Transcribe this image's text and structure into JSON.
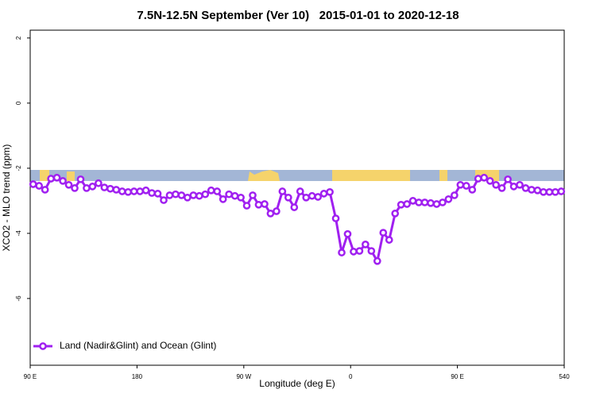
{
  "chart_data": {
    "type": "line",
    "title": "7.5N-12.5N September (Ver 10)   2015-01-01 to 2020-12-18",
    "xlabel": "Longitude (deg E)",
    "ylabel": "XCO2 - MLO trend (ppm)",
    "xlim": [
      90,
      540
    ],
    "xticks": [
      {
        "value": 90,
        "label": "90 E"
      },
      180,
      {
        "value": 270,
        "label": "90 W"
      },
      {
        "value": 360,
        "label": "0"
      },
      {
        "value": 450,
        "label": "90 E"
      },
      540
    ],
    "ylim": [
      -8.05,
      2.24
    ],
    "yticks": [
      -6,
      -4,
      -2,
      0,
      2
    ],
    "legend": "bottom-left",
    "x": [
      92.5,
      97.5,
      102.5,
      107.5,
      112.5,
      117.5,
      122.5,
      127.5,
      132.5,
      137.5,
      142.5,
      147.5,
      152.5,
      157.5,
      162.5,
      167.5,
      172.5,
      177.5,
      182.5,
      187.5,
      192.5,
      197.5,
      202.5,
      207.5,
      212.5,
      217.5,
      222.5,
      227.5,
      232.5,
      237.5,
      242.5,
      247.5,
      252.5,
      257.5,
      262.5,
      267.5,
      272.5,
      277.5,
      282.5,
      287.5,
      292.5,
      297.5,
      302.5,
      307.5,
      312.5,
      317.5,
      322.5,
      327.5,
      332.5,
      337.5,
      342.5,
      347.5,
      352.5,
      357.5,
      362.5,
      367.5,
      372.5,
      377.5,
      382.5,
      387.5,
      392.5,
      397.5,
      402.5,
      407.5,
      412.5,
      417.5,
      422.5,
      427.5,
      432.5,
      437.5,
      442.5,
      447.5,
      452.5,
      457.5,
      462.5,
      467.5,
      472.5,
      477.5,
      482.5,
      487.5,
      492.5,
      497.5,
      502.5,
      507.5,
      512.5,
      517.5,
      522.5,
      527.5,
      532.5,
      537.5
    ],
    "series": [
      {
        "name": "Land (Nadir&Glint) and Ocean (Glint)",
        "color": "#a020f0",
        "values": [
          -2.49,
          -2.54,
          -2.66,
          -2.32,
          -2.29,
          -2.39,
          -2.51,
          -2.61,
          -2.34,
          -2.61,
          -2.56,
          -2.46,
          -2.59,
          -2.63,
          -2.66,
          -2.71,
          -2.73,
          -2.71,
          -2.71,
          -2.68,
          -2.76,
          -2.78,
          -2.98,
          -2.83,
          -2.8,
          -2.83,
          -2.9,
          -2.83,
          -2.85,
          -2.8,
          -2.68,
          -2.71,
          -2.95,
          -2.8,
          -2.85,
          -2.9,
          -3.15,
          -2.83,
          -3.12,
          -3.1,
          -3.39,
          -3.32,
          -2.71,
          -2.9,
          -3.2,
          -2.71,
          -2.9,
          -2.85,
          -2.88,
          -2.78,
          -2.73,
          -3.54,
          -4.59,
          -4.02,
          -4.56,
          -4.54,
          -4.34,
          -4.54,
          -4.85,
          -3.98,
          -4.2,
          -3.39,
          -3.12,
          -3.1,
          -3.0,
          -3.05,
          -3.05,
          -3.07,
          -3.1,
          -3.05,
          -2.95,
          -2.83,
          -2.51,
          -2.54,
          -2.66,
          -2.32,
          -2.29,
          -2.39,
          -2.51,
          -2.61,
          -2.34,
          -2.56,
          -2.51,
          -2.61,
          -2.66,
          -2.68,
          -2.73,
          -2.73,
          -2.73,
          -2.71
        ]
      }
    ]
  }
}
